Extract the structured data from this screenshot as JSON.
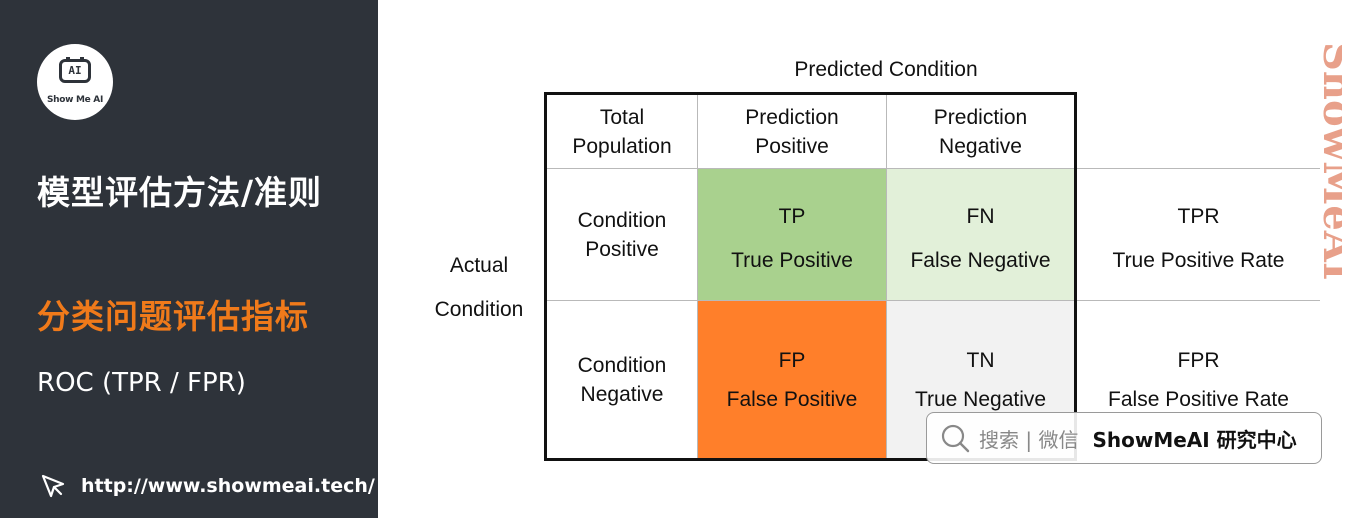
{
  "sidebar": {
    "logo_text": "Show Me AI",
    "logo_face_text": "AI",
    "title": "模型评估方法/准则",
    "subtitle": "分类问题评估指标",
    "topic": "ROC (TPR / FPR)",
    "link": "http://www.showmeai.tech/",
    "colors": {
      "background": "#2e333a",
      "accent": "#f07a1a"
    }
  },
  "table": {
    "predicted_header": "Predicted Condition",
    "actual_header_line1": "Actual",
    "actual_header_line2": "Condition",
    "corner_line1": "Total",
    "corner_line2": "Population",
    "pred_pos_line1": "Prediction",
    "pred_pos_line2": "Positive",
    "pred_neg_line1": "Prediction",
    "pred_neg_line2": "Negative",
    "cond_pos_line1": "Condition",
    "cond_pos_line2": "Positive",
    "cond_neg_line1": "Condition",
    "cond_neg_line2": "Negative",
    "tp_abbr": "TP",
    "tp_name": "True Positive",
    "fn_abbr": "FN",
    "fn_name": "False Negative",
    "fp_abbr": "FP",
    "fp_name": "False Positive",
    "tn_abbr": "TN",
    "tn_name": "True Negative",
    "tpr_abbr": "TPR",
    "tpr_name": "True Positive Rate",
    "fpr_abbr": "FPR",
    "fpr_name": "False Positive Rate",
    "colors": {
      "tp": "#a9d18e",
      "fn": "#e2f0d9",
      "fp": "#ff7f2a",
      "tn": "#f2f2f2"
    }
  },
  "watermark": "ShowMeAI",
  "search": {
    "text": "搜索 | 微信",
    "brand": "ShowMeAI 研究中心"
  }
}
